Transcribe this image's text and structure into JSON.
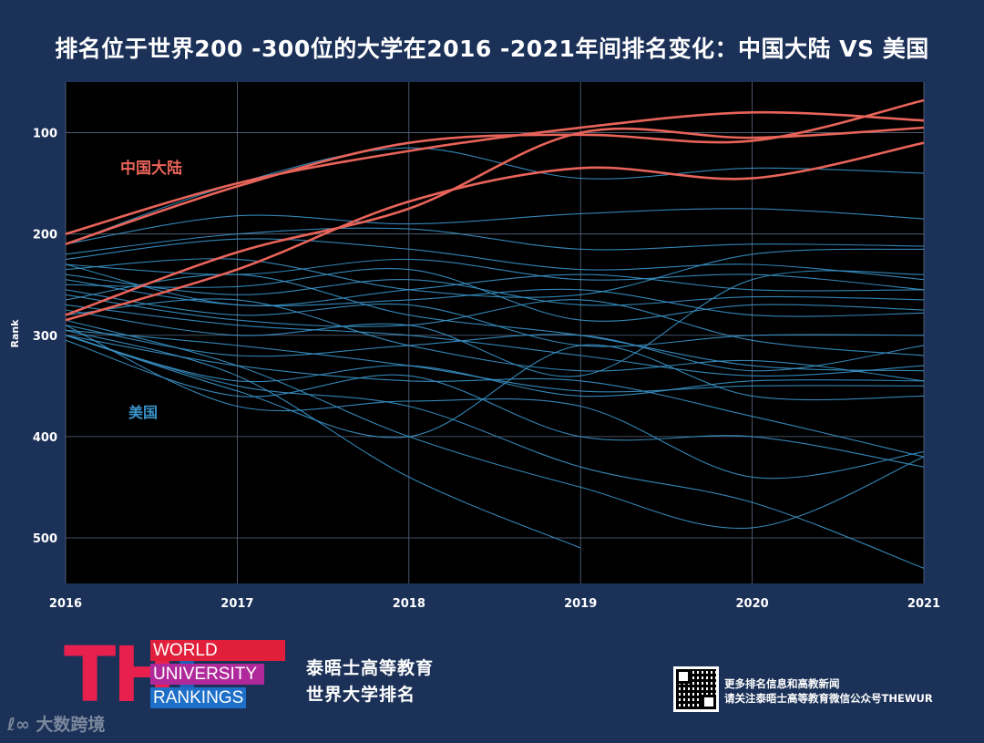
{
  "title": "排名位于世界200 -300位的大学在2016 -2021年间排名变化：中国大陆 VS 美国",
  "chart_data": {
    "type": "line",
    "title": "排名位于世界200 -300位的大学在2016 -2021年间排名变化：中国大陆 VS 美国",
    "xlabel": "",
    "ylabel": "Rank",
    "x": [
      2016,
      2017,
      2018,
      2019,
      2020,
      2021
    ],
    "xlim": [
      2016,
      2021
    ],
    "ylim": [
      545,
      50
    ],
    "y_inverted": true,
    "y_ticks": [
      100,
      200,
      300,
      400,
      500
    ],
    "x_ticks": [
      "2016",
      "2017",
      "2018",
      "2019",
      "2020",
      "2021"
    ],
    "grid": true,
    "annotations": [
      {
        "text": "中国大陆",
        "color": "#e8645a"
      },
      {
        "text": "美国",
        "color": "#3a93c9"
      }
    ],
    "groups": [
      {
        "label": "中国大陆",
        "color": "#e8645a",
        "series": [
          {
            "values": [
              200,
              150,
              118,
              95,
              80,
              88
            ]
          },
          {
            "values": [
              210,
              153,
              110,
              102,
              108,
              68
            ]
          },
          {
            "values": [
              280,
              218,
              175,
              100,
              105,
              95
            ]
          },
          {
            "values": [
              285,
              235,
              168,
              135,
              145,
              110
            ]
          }
        ]
      },
      {
        "label": "美国",
        "color": "#3a93c9",
        "series": [
          {
            "values": [
              210,
              150,
              115,
              145,
              135,
              140
            ]
          },
          {
            "values": [
              210,
              182,
              190,
              180,
              175,
              185
            ]
          },
          {
            "values": [
              220,
              200,
              195,
              215,
              210,
              212
            ]
          },
          {
            "values": [
              225,
              205,
              215,
              235,
              230,
              245
            ]
          },
          {
            "values": [
              230,
              240,
              225,
              245,
              240,
              255
            ]
          },
          {
            "values": [
              235,
              225,
              255,
              260,
              220,
              215
            ]
          },
          {
            "values": [
              240,
              260,
              245,
              270,
              262,
              265
            ]
          },
          {
            "values": [
              245,
              270,
              265,
              255,
              280,
              278
            ]
          },
          {
            "values": [
              250,
              252,
              235,
              285,
              270,
              275
            ]
          },
          {
            "values": [
              255,
              280,
              270,
              310,
              300,
              300
            ]
          },
          {
            "values": [
              260,
              285,
              290,
              265,
              305,
              320
            ]
          },
          {
            "values": [
              265,
              240,
              280,
              300,
              330,
              335
            ]
          },
          {
            "values": [
              270,
              290,
              300,
              320,
              340,
              330
            ]
          },
          {
            "values": [
              275,
              300,
              290,
              340,
              245,
              240
            ]
          },
          {
            "values": [
              280,
              265,
              310,
              335,
              325,
              345
            ]
          },
          {
            "values": [
              290,
              320,
              310,
              300,
              335,
              310
            ]
          },
          {
            "values": [
              295,
              310,
              330,
              355,
              350,
              350
            ]
          },
          {
            "values": [
              300,
              330,
              345,
              345,
              380,
              420
            ]
          },
          {
            "values": [
              300,
              345,
              330,
              360,
              345,
              345
            ]
          },
          {
            "values": [
              305,
              360,
              340,
              400,
              400,
              430
            ]
          },
          {
            "values": [
              290,
              370,
              365,
              370,
              440,
              415
            ]
          },
          {
            "values": [
              300,
              355,
              400,
              310,
              360,
              360
            ]
          },
          {
            "values": [
              285,
              330,
              400,
              450,
              490,
              420
            ]
          },
          {
            "values": [
              295,
              340,
              440,
              510,
              null,
              null
            ]
          },
          {
            "values": [
              300,
              350,
              370,
              430,
              465,
              530
            ]
          },
          {
            "values": [
              230,
              270,
              255,
              240,
              255,
              255
            ]
          }
        ]
      }
    ]
  },
  "brand": {
    "the": "THE",
    "line1": "WORLD",
    "line2": "UNIVERSITY",
    "line3": "RANKINGS",
    "cn_line1": "泰晤士高等教育",
    "cn_line2": "世界大学排名"
  },
  "footer": {
    "note_line1": "更多排名信息和高教新闻",
    "note_line2": "请关注泰晤士高等教育微信公众号THEWUR"
  },
  "watermark": "大数跨境"
}
